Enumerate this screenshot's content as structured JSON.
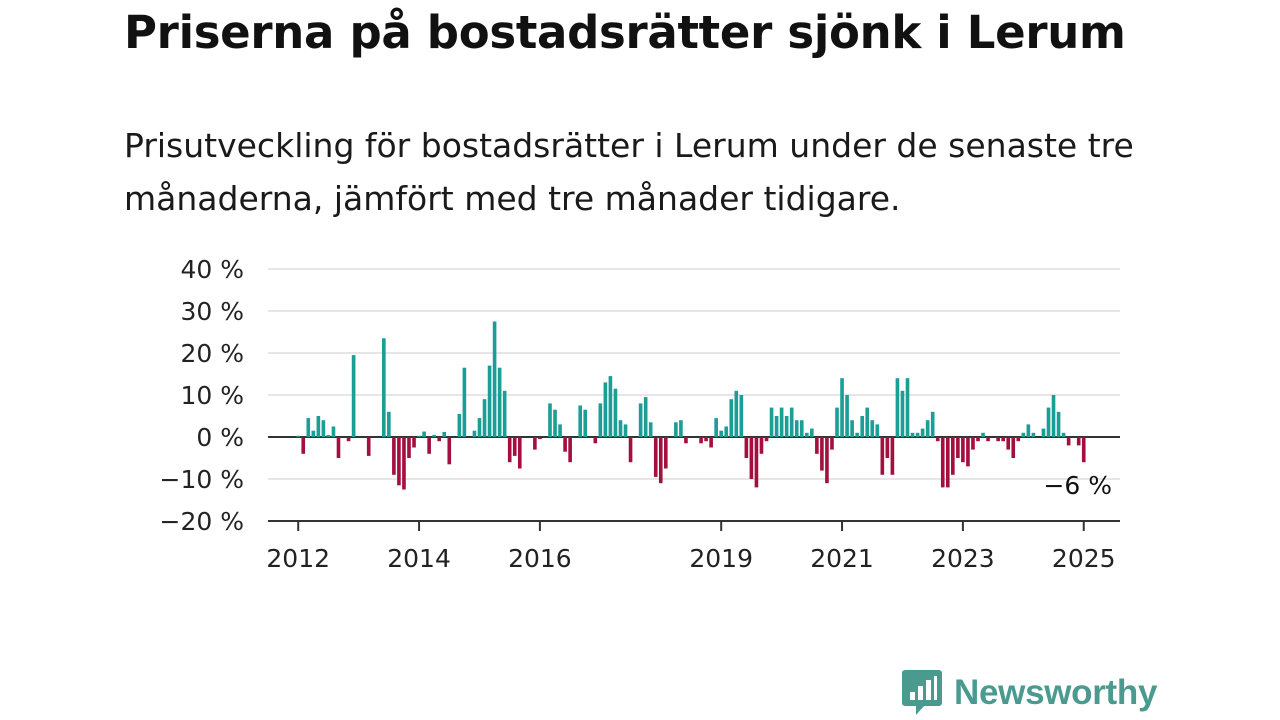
{
  "title": "Priserna på bostadsrätter sjönk i Lerum",
  "subtitle": "Prisutveckling för bostadsrätter i Lerum under de senaste tre månaderna, jämfört med tre månader tidigare.",
  "brand": {
    "name": "Newsworthy",
    "icon": "newsworthy-bar-chart-bubble-icon",
    "color": "#4a9a8f"
  },
  "colors": {
    "positive": "#1a9e96",
    "negative": "#a3103f",
    "grid": "#dddddd",
    "axis": "#333333"
  },
  "chart_data": {
    "type": "bar",
    "title": "Priserna på bostadsrätter sjönk i Lerum",
    "subtitle": "Prisutveckling för bostadsrätter i Lerum under de senaste tre månaderna, jämfört med tre månader tidigare.",
    "xlabel": "",
    "ylabel": "",
    "ylim": [
      -20,
      40
    ],
    "y_ticks": [
      40,
      30,
      20,
      10,
      0,
      -10,
      -20
    ],
    "y_tick_labels": [
      "40 %",
      "30 %",
      "20 %",
      "10 %",
      "0 %",
      "−10 %",
      "−20 %"
    ],
    "x_range": [
      2011.5,
      2025.6
    ],
    "x_ticks": [
      2012,
      2014,
      2016,
      2019,
      2021,
      2023,
      2025
    ],
    "x_tick_labels": [
      "2012",
      "2014",
      "2016",
      "2019",
      "2021",
      "2023",
      "2025"
    ],
    "grid": true,
    "end_label": "−6 %",
    "series": [
      {
        "values": [
          {
            "x": "2012-01",
            "y": 0.3
          },
          {
            "x": "2012-02",
            "y": -4
          },
          {
            "x": "2012-03",
            "y": 4.5
          },
          {
            "x": "2012-04",
            "y": 1.5
          },
          {
            "x": "2012-05",
            "y": 5
          },
          {
            "x": "2012-06",
            "y": 4
          },
          {
            "x": "2012-07",
            "y": 0.5
          },
          {
            "x": "2012-08",
            "y": 2.5
          },
          {
            "x": "2012-09",
            "y": -5
          },
          {
            "x": "2012-10",
            "y": 0
          },
          {
            "x": "2012-11",
            "y": -1
          },
          {
            "x": "2012-12",
            "y": 19.5
          },
          {
            "x": "2013-01",
            "y": 0
          },
          {
            "x": "2013-02",
            "y": 0
          },
          {
            "x": "2013-03",
            "y": -4.5
          },
          {
            "x": "2013-04",
            "y": 0
          },
          {
            "x": "2013-05",
            "y": 0
          },
          {
            "x": "2013-06",
            "y": 23.5
          },
          {
            "x": "2013-07",
            "y": 6
          },
          {
            "x": "2013-08",
            "y": -9
          },
          {
            "x": "2013-09",
            "y": -11.5
          },
          {
            "x": "2013-10",
            "y": -12.5
          },
          {
            "x": "2013-11",
            "y": -5
          },
          {
            "x": "2013-12",
            "y": -2.5
          },
          {
            "x": "2014-01",
            "y": 0.3
          },
          {
            "x": "2014-02",
            "y": 1.3
          },
          {
            "x": "2014-03",
            "y": -4
          },
          {
            "x": "2014-04",
            "y": 0.5
          },
          {
            "x": "2014-05",
            "y": -1
          },
          {
            "x": "2014-06",
            "y": 1.2
          },
          {
            "x": "2014-07",
            "y": -6.5
          },
          {
            "x": "2014-08",
            "y": 0
          },
          {
            "x": "2014-09",
            "y": 5.5
          },
          {
            "x": "2014-10",
            "y": 16.5
          },
          {
            "x": "2014-11",
            "y": 0
          },
          {
            "x": "2014-12",
            "y": 1.5
          },
          {
            "x": "2015-01",
            "y": 4.5
          },
          {
            "x": "2015-02",
            "y": 9
          },
          {
            "x": "2015-03",
            "y": 17
          },
          {
            "x": "2015-04",
            "y": 27.5
          },
          {
            "x": "2015-05",
            "y": 16.5
          },
          {
            "x": "2015-06",
            "y": 11
          },
          {
            "x": "2015-07",
            "y": -6
          },
          {
            "x": "2015-08",
            "y": -4.5
          },
          {
            "x": "2015-09",
            "y": -7.5
          },
          {
            "x": "2015-10",
            "y": 0
          },
          {
            "x": "2015-11",
            "y": 0
          },
          {
            "x": "2015-12",
            "y": -3
          },
          {
            "x": "2016-01",
            "y": -0.5
          },
          {
            "x": "2016-02",
            "y": 0
          },
          {
            "x": "2016-03",
            "y": 8
          },
          {
            "x": "2016-04",
            "y": 6.5
          },
          {
            "x": "2016-05",
            "y": 3
          },
          {
            "x": "2016-06",
            "y": -3.5
          },
          {
            "x": "2016-07",
            "y": -6
          },
          {
            "x": "2016-08",
            "y": 0
          },
          {
            "x": "2016-09",
            "y": 7.5
          },
          {
            "x": "2016-10",
            "y": 6.5
          },
          {
            "x": "2016-11",
            "y": 0
          },
          {
            "x": "2016-12",
            "y": -1.5
          },
          {
            "x": "2017-01",
            "y": 8
          },
          {
            "x": "2017-02",
            "y": 13
          },
          {
            "x": "2017-03",
            "y": 14.5
          },
          {
            "x": "2017-04",
            "y": 11.5
          },
          {
            "x": "2017-05",
            "y": 4
          },
          {
            "x": "2017-06",
            "y": 3
          },
          {
            "x": "2017-07",
            "y": -6
          },
          {
            "x": "2017-08",
            "y": 0
          },
          {
            "x": "2017-09",
            "y": 8
          },
          {
            "x": "2017-10",
            "y": 9.5
          },
          {
            "x": "2017-11",
            "y": 3.5
          },
          {
            "x": "2017-12",
            "y": -9.5
          },
          {
            "x": "2018-01",
            "y": -11
          },
          {
            "x": "2018-02",
            "y": -7.5
          },
          {
            "x": "2018-03",
            "y": 0
          },
          {
            "x": "2018-04",
            "y": 3.5
          },
          {
            "x": "2018-05",
            "y": 4
          },
          {
            "x": "2018-06",
            "y": -1.5
          },
          {
            "x": "2018-07",
            "y": 0
          },
          {
            "x": "2018-08",
            "y": 0
          },
          {
            "x": "2018-09",
            "y": -1.5
          },
          {
            "x": "2018-10",
            "y": -1
          },
          {
            "x": "2018-11",
            "y": -2.5
          },
          {
            "x": "2018-12",
            "y": 4.5
          },
          {
            "x": "2019-01",
            "y": 1.5
          },
          {
            "x": "2019-02",
            "y": 2.5
          },
          {
            "x": "2019-03",
            "y": 9
          },
          {
            "x": "2019-04",
            "y": 11
          },
          {
            "x": "2019-05",
            "y": 10
          },
          {
            "x": "2019-06",
            "y": -5
          },
          {
            "x": "2019-07",
            "y": -10
          },
          {
            "x": "2019-08",
            "y": -12
          },
          {
            "x": "2019-09",
            "y": -4
          },
          {
            "x": "2019-10",
            "y": -1
          },
          {
            "x": "2019-11",
            "y": 7
          },
          {
            "x": "2019-12",
            "y": 5
          },
          {
            "x": "2020-01",
            "y": 7
          },
          {
            "x": "2020-02",
            "y": 5
          },
          {
            "x": "2020-03",
            "y": 7
          },
          {
            "x": "2020-04",
            "y": 4
          },
          {
            "x": "2020-05",
            "y": 4
          },
          {
            "x": "2020-06",
            "y": 1
          },
          {
            "x": "2020-07",
            "y": 2
          },
          {
            "x": "2020-08",
            "y": -4
          },
          {
            "x": "2020-09",
            "y": -8
          },
          {
            "x": "2020-10",
            "y": -11
          },
          {
            "x": "2020-11",
            "y": -3
          },
          {
            "x": "2020-12",
            "y": 7
          },
          {
            "x": "2021-01",
            "y": 14
          },
          {
            "x": "2021-02",
            "y": 10
          },
          {
            "x": "2021-03",
            "y": 4
          },
          {
            "x": "2021-04",
            "y": 1
          },
          {
            "x": "2021-05",
            "y": 5
          },
          {
            "x": "2021-06",
            "y": 7
          },
          {
            "x": "2021-07",
            "y": 4
          },
          {
            "x": "2021-08",
            "y": 3
          },
          {
            "x": "2021-09",
            "y": -9
          },
          {
            "x": "2021-10",
            "y": -5
          },
          {
            "x": "2021-11",
            "y": -9
          },
          {
            "x": "2021-12",
            "y": 14
          },
          {
            "x": "2022-01",
            "y": 11
          },
          {
            "x": "2022-02",
            "y": 14
          },
          {
            "x": "2022-03",
            "y": 1
          },
          {
            "x": "2022-04",
            "y": 1
          },
          {
            "x": "2022-05",
            "y": 2
          },
          {
            "x": "2022-06",
            "y": 4
          },
          {
            "x": "2022-07",
            "y": 6
          },
          {
            "x": "2022-08",
            "y": -1
          },
          {
            "x": "2022-09",
            "y": -12
          },
          {
            "x": "2022-10",
            "y": -12
          },
          {
            "x": "2022-11",
            "y": -9
          },
          {
            "x": "2022-12",
            "y": -5
          },
          {
            "x": "2023-01",
            "y": -6
          },
          {
            "x": "2023-02",
            "y": -7
          },
          {
            "x": "2023-03",
            "y": -3
          },
          {
            "x": "2023-04",
            "y": -1
          },
          {
            "x": "2023-05",
            "y": 1
          },
          {
            "x": "2023-06",
            "y": -1
          },
          {
            "x": "2023-07",
            "y": 0
          },
          {
            "x": "2023-08",
            "y": -1
          },
          {
            "x": "2023-09",
            "y": -1
          },
          {
            "x": "2023-10",
            "y": -3
          },
          {
            "x": "2023-11",
            "y": -5
          },
          {
            "x": "2023-12",
            "y": -1
          },
          {
            "x": "2024-01",
            "y": 1
          },
          {
            "x": "2024-02",
            "y": 3
          },
          {
            "x": "2024-03",
            "y": 1
          },
          {
            "x": "2024-04",
            "y": 0
          },
          {
            "x": "2024-05",
            "y": 2
          },
          {
            "x": "2024-06",
            "y": 7
          },
          {
            "x": "2024-07",
            "y": 10
          },
          {
            "x": "2024-08",
            "y": 6
          },
          {
            "x": "2024-09",
            "y": 1
          },
          {
            "x": "2024-10",
            "y": -2
          },
          {
            "x": "2024-11",
            "y": 0
          },
          {
            "x": "2024-12",
            "y": -2
          },
          {
            "x": "2025-01",
            "y": -6
          }
        ]
      }
    ]
  }
}
